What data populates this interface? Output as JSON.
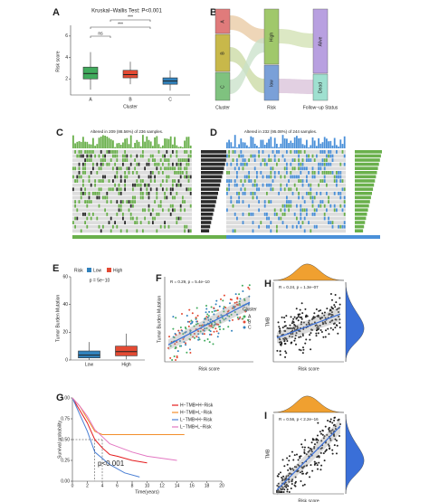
{
  "panels": {
    "A": {
      "letter": "A",
      "title": "Kruskal−Wallis Test: P<0.001",
      "y_label": "Risk score",
      "x_label": "Cluster",
      "categories": [
        "A",
        "B",
        "C"
      ],
      "colors": [
        "#41ab5d",
        "#e34a33",
        "#3182bd"
      ],
      "ylim": [
        0.5,
        7
      ],
      "yticks": [
        2,
        4,
        6
      ],
      "brackets": [
        "ns",
        "***",
        "***"
      ],
      "boxes": [
        {
          "low": 1.0,
          "q1": 2.0,
          "median": 2.5,
          "q3": 3.1,
          "high": 4.5
        },
        {
          "low": 1.5,
          "q1": 2.1,
          "median": 2.4,
          "q3": 2.8,
          "high": 3.6
        },
        {
          "low": 0.9,
          "q1": 1.5,
          "median": 1.8,
          "q3": 2.1,
          "high": 2.8
        }
      ]
    },
    "B": {
      "letter": "B",
      "nodes": [
        "A",
        "B",
        "C",
        "High",
        "low",
        "Alive",
        "Dead"
      ],
      "axes": [
        "Cluster",
        "Risk",
        "Follow−up Status"
      ]
    },
    "C": {
      "letter": "C",
      "title": "Altered in 209 (88.56%) of 236 samples."
    },
    "D": {
      "letter": "D",
      "title": "Altered in 232 (95.08%) of 244 samples."
    },
    "E": {
      "letter": "E",
      "legend_title": "Risk",
      "legend": [
        "Low",
        "High"
      ],
      "colors": [
        "#3182bd",
        "#e34a33"
      ],
      "annotation": "p = 5e−10",
      "y_label": "Tumor Burden Mutation",
      "categories": [
        "Low",
        "High"
      ],
      "ylim": [
        0,
        60
      ],
      "yticks": [
        0,
        20,
        40,
        60
      ],
      "boxes": [
        {
          "low": 0,
          "q1": 1.5,
          "median": 3.5,
          "q3": 6.5,
          "high": 13
        },
        {
          "low": 0.5,
          "q1": 3,
          "median": 6,
          "q3": 10,
          "high": 19
        }
      ]
    },
    "F": {
      "letter": "F",
      "annotation": "R = 0.29, p = 5.4e−10",
      "x_label": "Risk score",
      "y_label": "Tumor Burden Mutation",
      "legend_title": "Cluster",
      "legend": [
        "A",
        "B",
        "C"
      ],
      "colors": [
        "#41ab5d",
        "#e34a33",
        "#3182bd"
      ]
    },
    "H": {
      "letter": "H",
      "annotation": "R = 0.24, p = 1.3e−07",
      "x_label": "Risk score",
      "y_label": "TMB"
    },
    "G": {
      "letter": "G",
      "x_label": "Time(years)",
      "y_label": "Survival probability",
      "annotation": "p<0.001",
      "xlim": [
        0,
        20
      ],
      "xticks": [
        0,
        2,
        4,
        6,
        8,
        10,
        12,
        14,
        16,
        18,
        20
      ],
      "ylim": [
        0,
        1
      ],
      "yticks": [
        {
          "value": 0,
          "label": "0.00"
        },
        {
          "value": 0.25,
          "label": "0.25"
        },
        {
          "value": 0.5,
          "label": "0.50"
        },
        {
          "value": 0.75,
          "label": "0.75"
        },
        {
          "value": 1,
          "label": "1.00"
        }
      ],
      "series": [
        {
          "name": "H−TMB+H−Risk",
          "color": "#e41a1c",
          "x": [
            0,
            1,
            2,
            3,
            4,
            5,
            6,
            8,
            10
          ],
          "values": [
            1,
            0.85,
            0.7,
            0.5,
            0.4,
            0.32,
            0.3,
            0.25,
            0.22
          ]
        },
        {
          "name": "H−TMB+L−Risk",
          "color": "#f28e2b",
          "x": [
            0,
            1,
            2,
            3,
            4,
            15
          ],
          "values": [
            1,
            0.9,
            0.75,
            0.6,
            0.56,
            0.56
          ]
        },
        {
          "name": "L−TMB+H−Risk",
          "color": "#4a7fd4",
          "x": [
            0,
            1,
            2,
            3,
            5,
            7,
            9
          ],
          "values": [
            1,
            0.8,
            0.6,
            0.35,
            0.2,
            0.1,
            0.05
          ]
        },
        {
          "name": "L−TMB+L−Risk",
          "color": "#e377c2",
          "x": [
            0,
            1,
            2,
            3,
            5,
            8,
            10,
            14
          ],
          "values": [
            1,
            0.9,
            0.78,
            0.62,
            0.45,
            0.35,
            0.3,
            0.25
          ]
        }
      ]
    },
    "I": {
      "letter": "I",
      "annotation": "R = 0.56, p < 2.2e−16",
      "x_label": "Risk score",
      "y_label": "TMB"
    }
  }
}
